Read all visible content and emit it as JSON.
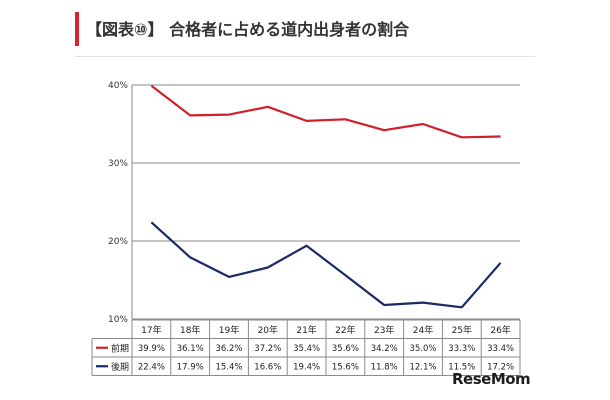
{
  "header": {
    "title": "【図表⑩】 合格者に占める道内出身者の割合"
  },
  "brand": {
    "logo_text": "ReseMom"
  },
  "colors": {
    "accent": "#d9232d",
    "series_a": "#d0202a",
    "series_b": "#1a2a66"
  },
  "chart_data": {
    "type": "line",
    "categories": [
      "17年",
      "18年",
      "19年",
      "20年",
      "21年",
      "22年",
      "23年",
      "24年",
      "25年",
      "26年"
    ],
    "series": [
      {
        "name": "前期",
        "values": [
          39.9,
          36.1,
          36.2,
          37.2,
          35.4,
          35.6,
          34.2,
          35.0,
          33.3,
          33.4
        ],
        "labels": [
          "39.9%",
          "36.1%",
          "36.2%",
          "37.2%",
          "35.4%",
          "35.6%",
          "34.2%",
          "35.0%",
          "33.3%",
          "33.4%"
        ]
      },
      {
        "name": "後期",
        "values": [
          22.4,
          17.9,
          15.4,
          16.6,
          19.4,
          15.6,
          11.8,
          12.1,
          11.5,
          17.2
        ],
        "labels": [
          "22.4%",
          "17.9%",
          "15.4%",
          "16.6%",
          "19.4%",
          "15.6%",
          "11.8%",
          "12.1%",
          "11.5%",
          "17.2%"
        ]
      }
    ],
    "ylim": [
      10,
      40
    ],
    "yticks": [
      10,
      20,
      30,
      40
    ],
    "ytick_labels": [
      "10%",
      "20%",
      "30%",
      "40%"
    ],
    "grid": true,
    "legend_placement": "data-table-left"
  }
}
